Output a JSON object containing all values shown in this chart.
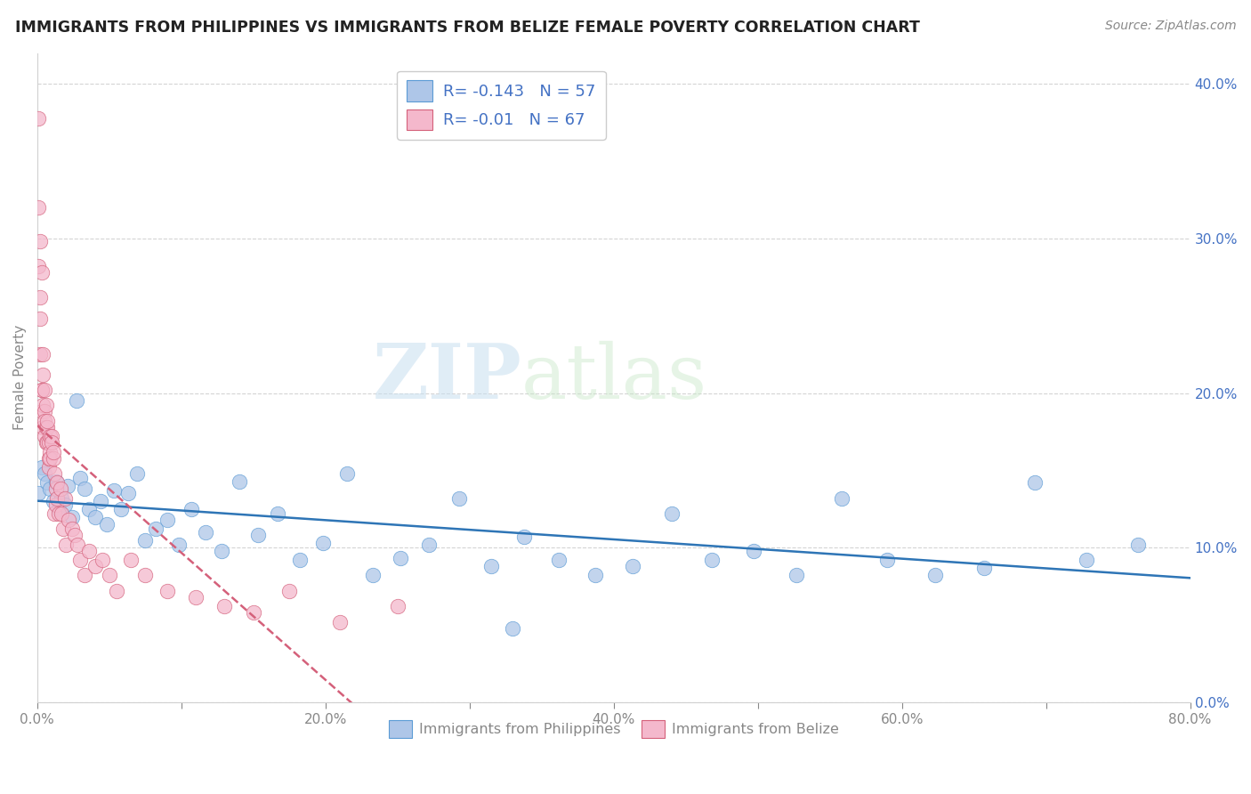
{
  "title": "IMMIGRANTS FROM PHILIPPINES VS IMMIGRANTS FROM BELIZE FEMALE POVERTY CORRELATION CHART",
  "source": "Source: ZipAtlas.com",
  "ylabel": "Female Poverty",
  "watermark_zip": "ZIP",
  "watermark_atlas": "atlas",
  "series": [
    {
      "name": "Immigrants from Philippines",
      "color": "#aec6e8",
      "edge_color": "#5b9bd5",
      "line_color": "#2e75b6",
      "line_style": "solid",
      "R": -0.143,
      "N": 57,
      "x": [
        0.001,
        0.003,
        0.005,
        0.007,
        0.009,
        0.011,
        0.013,
        0.015,
        0.017,
        0.019,
        0.021,
        0.024,
        0.027,
        0.03,
        0.033,
        0.036,
        0.04,
        0.044,
        0.048,
        0.053,
        0.058,
        0.063,
        0.069,
        0.075,
        0.082,
        0.09,
        0.098,
        0.107,
        0.117,
        0.128,
        0.14,
        0.153,
        0.167,
        0.182,
        0.198,
        0.215,
        0.233,
        0.252,
        0.272,
        0.293,
        0.315,
        0.338,
        0.362,
        0.387,
        0.413,
        0.44,
        0.468,
        0.497,
        0.527,
        0.558,
        0.59,
        0.623,
        0.657,
        0.692,
        0.728,
        0.764,
        0.33
      ],
      "y": [
        0.135,
        0.152,
        0.148,
        0.142,
        0.138,
        0.13,
        0.143,
        0.125,
        0.132,
        0.128,
        0.14,
        0.12,
        0.195,
        0.145,
        0.138,
        0.125,
        0.12,
        0.13,
        0.115,
        0.137,
        0.125,
        0.135,
        0.148,
        0.105,
        0.112,
        0.118,
        0.102,
        0.125,
        0.11,
        0.098,
        0.143,
        0.108,
        0.122,
        0.092,
        0.103,
        0.148,
        0.082,
        0.093,
        0.102,
        0.132,
        0.088,
        0.107,
        0.092,
        0.082,
        0.088,
        0.122,
        0.092,
        0.098,
        0.082,
        0.132,
        0.092,
        0.082,
        0.087,
        0.142,
        0.092,
        0.102,
        0.048
      ]
    },
    {
      "name": "Immigrants from Belize",
      "color": "#f4b8cc",
      "edge_color": "#d4607a",
      "line_color": "#d4607a",
      "line_style": "dashed",
      "R": -0.01,
      "N": 67,
      "x": [
        0.001,
        0.001,
        0.001,
        0.002,
        0.002,
        0.002,
        0.002,
        0.003,
        0.003,
        0.003,
        0.003,
        0.004,
        0.004,
        0.004,
        0.004,
        0.005,
        0.005,
        0.005,
        0.005,
        0.006,
        0.006,
        0.006,
        0.007,
        0.007,
        0.007,
        0.008,
        0.008,
        0.008,
        0.009,
        0.009,
        0.009,
        0.01,
        0.01,
        0.011,
        0.011,
        0.012,
        0.012,
        0.013,
        0.013,
        0.014,
        0.014,
        0.015,
        0.016,
        0.017,
        0.018,
        0.019,
        0.02,
        0.022,
        0.024,
        0.026,
        0.028,
        0.03,
        0.033,
        0.036,
        0.04,
        0.045,
        0.05,
        0.055,
        0.065,
        0.075,
        0.09,
        0.11,
        0.13,
        0.15,
        0.175,
        0.21,
        0.25
      ],
      "y": [
        0.378,
        0.32,
        0.282,
        0.298,
        0.262,
        0.248,
        0.225,
        0.278,
        0.202,
        0.188,
        0.202,
        0.225,
        0.178,
        0.212,
        0.192,
        0.188,
        0.172,
        0.202,
        0.182,
        0.178,
        0.168,
        0.192,
        0.178,
        0.182,
        0.168,
        0.152,
        0.168,
        0.158,
        0.172,
        0.162,
        0.158,
        0.172,
        0.168,
        0.158,
        0.162,
        0.122,
        0.148,
        0.138,
        0.128,
        0.142,
        0.132,
        0.122,
        0.138,
        0.122,
        0.112,
        0.132,
        0.102,
        0.118,
        0.112,
        0.108,
        0.102,
        0.092,
        0.082,
        0.098,
        0.088,
        0.092,
        0.082,
        0.072,
        0.092,
        0.082,
        0.072,
        0.068,
        0.062,
        0.058,
        0.072,
        0.052,
        0.062
      ]
    }
  ],
  "xlim": [
    0.0,
    0.8
  ],
  "ylim": [
    0.0,
    0.42
  ],
  "xticks": [
    0.0,
    0.1,
    0.2,
    0.3,
    0.4,
    0.5,
    0.6,
    0.7,
    0.8
  ],
  "yticks": [
    0.0,
    0.1,
    0.2,
    0.3,
    0.4
  ],
  "ytick_right_labels": [
    "0.0%",
    "10.0%",
    "20.0%",
    "30.0%",
    "40.0%"
  ],
  "xtick_labels": [
    "0.0%",
    "",
    "20.0%",
    "",
    "40.0%",
    "",
    "60.0%",
    "",
    "80.0%"
  ],
  "background_color": "#ffffff",
  "grid_color": "#d0d0d0",
  "title_color": "#222222",
  "tick_color": "#888888",
  "right_tick_color": "#4472c4",
  "legend_text_color": "#4472c4"
}
